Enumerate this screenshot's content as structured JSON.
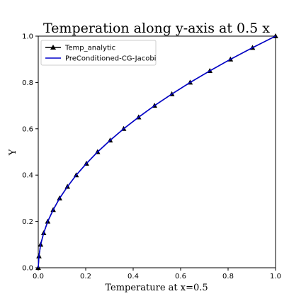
{
  "chart_data": {
    "type": "line",
    "title": "Temperation along y-axis at 0.5 x",
    "xlabel": "Temperature at x=0.5",
    "ylabel": "Y",
    "xlim": [
      0.0,
      1.0
    ],
    "ylim": [
      0.0,
      1.0
    ],
    "x_ticks": [
      "0.0",
      "0.2",
      "0.4",
      "0.6",
      "0.8",
      "1.0"
    ],
    "y_ticks": [
      "0.0",
      "0.2",
      "0.4",
      "0.6",
      "0.8",
      "1.0"
    ],
    "grid": false,
    "legend_position": "upper-left",
    "series": [
      {
        "name": "Temp_analytic",
        "color": "#000000",
        "marker": "triangle",
        "points": [
          [
            0.0,
            0.0
          ],
          [
            0.003,
            0.05
          ],
          [
            0.01,
            0.1
          ],
          [
            0.023,
            0.15
          ],
          [
            0.04,
            0.2
          ],
          [
            0.063,
            0.25
          ],
          [
            0.09,
            0.3
          ],
          [
            0.123,
            0.35
          ],
          [
            0.16,
            0.4
          ],
          [
            0.203,
            0.45
          ],
          [
            0.25,
            0.5
          ],
          [
            0.303,
            0.55
          ],
          [
            0.36,
            0.6
          ],
          [
            0.423,
            0.65
          ],
          [
            0.49,
            0.7
          ],
          [
            0.563,
            0.75
          ],
          [
            0.64,
            0.8
          ],
          [
            0.723,
            0.85
          ],
          [
            0.81,
            0.9
          ],
          [
            0.903,
            0.95
          ],
          [
            1.0,
            1.0
          ]
        ]
      },
      {
        "name": "PreConditioned-CG-Jacobi",
        "color": "#0000cc",
        "marker": "none",
        "points": [
          [
            0.0,
            0.0
          ],
          [
            0.003,
            0.05
          ],
          [
            0.01,
            0.1
          ],
          [
            0.023,
            0.15
          ],
          [
            0.04,
            0.2
          ],
          [
            0.063,
            0.25
          ],
          [
            0.09,
            0.3
          ],
          [
            0.123,
            0.35
          ],
          [
            0.16,
            0.4
          ],
          [
            0.203,
            0.45
          ],
          [
            0.25,
            0.5
          ],
          [
            0.303,
            0.55
          ],
          [
            0.36,
            0.6
          ],
          [
            0.423,
            0.65
          ],
          [
            0.49,
            0.7
          ],
          [
            0.563,
            0.75
          ],
          [
            0.64,
            0.8
          ],
          [
            0.723,
            0.85
          ],
          [
            0.81,
            0.9
          ],
          [
            0.903,
            0.95
          ],
          [
            1.0,
            1.0
          ]
        ]
      }
    ]
  }
}
